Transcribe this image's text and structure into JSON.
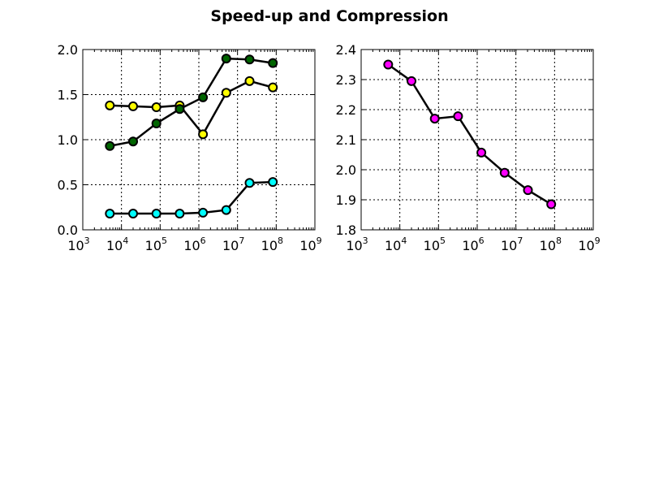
{
  "title": "Speed-up and Compression",
  "chart_data": [
    {
      "type": "line",
      "title": "",
      "xlabel": "",
      "ylabel": "",
      "xscale": "log",
      "xlim": [
        1000,
        1000000000
      ],
      "ylim": [
        0.0,
        2.0
      ],
      "grid": true,
      "x_tick_labels": [
        "10^3",
        "10^4",
        "10^5",
        "10^6",
        "10^7",
        "10^8",
        "10^9"
      ],
      "y_tick_labels": [
        "0.0",
        "0.5",
        "1.0",
        "1.5",
        "2.0"
      ],
      "x": [
        5000,
        20000,
        80000,
        320000,
        1280000,
        5120000,
        20480000,
        81920000
      ],
      "series": [
        {
          "name": "cyan",
          "color": "#00ffff",
          "values": [
            0.18,
            0.18,
            0.18,
            0.18,
            0.19,
            0.22,
            0.52,
            0.53
          ]
        },
        {
          "name": "yellow",
          "color": "#ffff00",
          "values": [
            1.38,
            1.37,
            1.36,
            1.38,
            1.06,
            1.52,
            1.65,
            1.58
          ]
        },
        {
          "name": "green",
          "color": "#006400",
          "values": [
            0.93,
            0.98,
            1.18,
            1.34,
            1.47,
            1.9,
            1.89,
            1.85
          ]
        }
      ]
    },
    {
      "type": "line",
      "title": "",
      "xlabel": "",
      "ylabel": "",
      "xscale": "log",
      "xlim": [
        1000,
        1000000000
      ],
      "ylim": [
        1.8,
        2.4
      ],
      "grid": true,
      "x_tick_labels": [
        "10^3",
        "10^4",
        "10^5",
        "10^6",
        "10^7",
        "10^8",
        "10^9"
      ],
      "y_tick_labels": [
        "1.8",
        "1.9",
        "2.0",
        "2.1",
        "2.2",
        "2.3",
        "2.4"
      ],
      "x": [
        5000,
        20000,
        80000,
        320000,
        1280000,
        5120000,
        20480000,
        81920000
      ],
      "series": [
        {
          "name": "magenta",
          "color": "#ff00ff",
          "values": [
            2.35,
            2.295,
            2.17,
            2.178,
            2.057,
            1.99,
            1.932,
            1.885
          ]
        }
      ]
    }
  ]
}
